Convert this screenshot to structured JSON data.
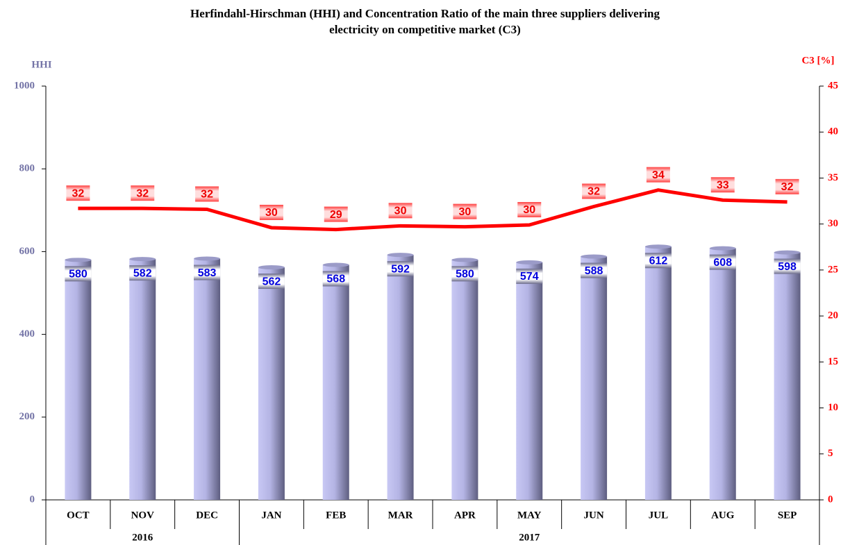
{
  "chart_data": {
    "type": "combo",
    "title": "Herfindahl-Hirschman (HHI) and Concentration Ratio of the main three suppliers delivering electricity on competitive market (C3)",
    "ylabel": "HHI",
    "y2label": "C3 [%]",
    "groups": [
      {
        "name": "2016",
        "categories": [
          "OCT",
          "NOV",
          "DEC"
        ]
      },
      {
        "name": "2017",
        "categories": [
          "JAN",
          "FEB",
          "MAR",
          "APR",
          "MAY",
          "JUN",
          "JUL",
          "AUG",
          "SEP"
        ]
      }
    ],
    "series": [
      {
        "name": "HHI",
        "type": "bar",
        "axis": "y",
        "color": "#b8b8e8",
        "label_color": "#0000dd",
        "values": [
          580,
          582,
          583,
          562,
          568,
          592,
          580,
          574,
          588,
          612,
          608,
          598
        ]
      },
      {
        "name": "C3",
        "type": "line",
        "axis": "y2",
        "color": "#ff0000",
        "label_color": "#ee0000",
        "values": [
          31.7,
          31.7,
          31.6,
          29.6,
          29.4,
          29.8,
          29.7,
          29.9,
          31.9,
          33.7,
          32.6,
          32.4
        ],
        "value_labels": [
          "32",
          "32",
          "32",
          "30",
          "29",
          "30",
          "30",
          "30",
          "32",
          "34",
          "33",
          "32"
        ]
      }
    ],
    "ylim": [
      0,
      1000
    ],
    "yticks": [
      0,
      200,
      400,
      600,
      800,
      1000
    ],
    "y2lim": [
      0,
      45
    ],
    "y2ticks": [
      0,
      5,
      10,
      15,
      20,
      25,
      30,
      35,
      40,
      45
    ],
    "ycolor": "#7373a6",
    "y2color": "#ff0000"
  }
}
